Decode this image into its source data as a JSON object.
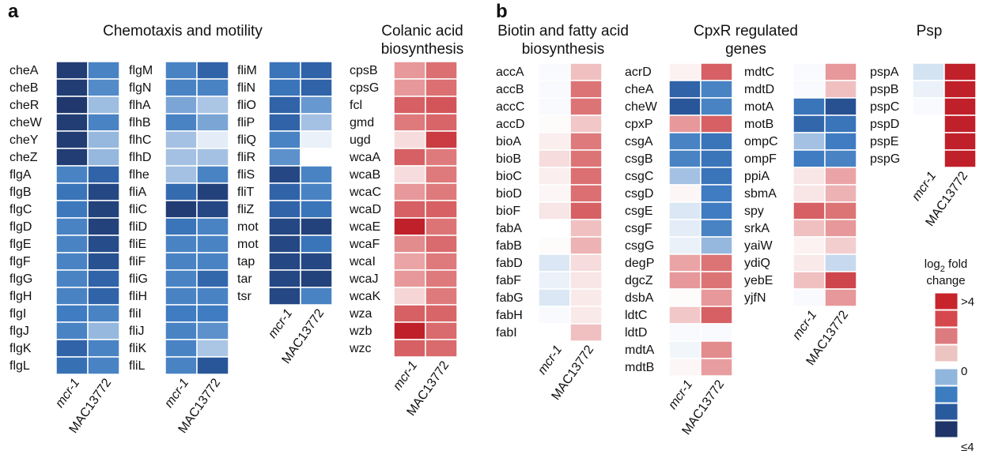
{
  "panel_labels": [
    "a",
    "b"
  ],
  "column_labels": [
    "mcr-1",
    "MAC13772"
  ],
  "legend": {
    "title_line1": "log",
    "title_sub": "2",
    "title_rest": " fold",
    "title_line2": "change",
    "ticks": [
      ">4",
      "0",
      "≤4"
    ],
    "colors": [
      "#c8242c",
      "#d4484e",
      "#dc7c7f",
      "#ecc4c2",
      "#ffffff",
      "#90b6dc",
      "#3c7dc0",
      "#2a5a9e",
      "#1f3468"
    ]
  },
  "color_scale": {
    "min": -4,
    "max": 4,
    "neg_colors": [
      "#ffffff",
      "#c6d9ee",
      "#8fb3dc",
      "#3f7cc1",
      "#2b5b9f",
      "#1e3366"
    ],
    "pos_colors": [
      "#ffffff",
      "#f6dcdc",
      "#eaa4a6",
      "#dc7476",
      "#d04b50",
      "#c0202a"
    ]
  },
  "chart_data": [
    {
      "type": "heatmap",
      "panel": "a",
      "title": "Chemotaxis and motility",
      "columns": [
        "mcr-1",
        "MAC13772"
      ],
      "groups": [
        {
          "rows": [
            "cheA",
            "cheB",
            "cheR",
            "cheW",
            "cheY",
            "cheZ",
            "flgA",
            "flgB",
            "flgC",
            "flgD",
            "flgE",
            "flgF",
            "flgG",
            "flgH",
            "flgI",
            "flgJ",
            "flgK",
            "flgL"
          ],
          "values": [
            [
              -3.8,
              -2.3
            ],
            [
              -3.8,
              -2.2
            ],
            [
              -3.9,
              -1.4
            ],
            [
              -3.8,
              -2.3
            ],
            [
              -3.8,
              -1.5
            ],
            [
              -3.8,
              -1.5
            ],
            [
              -2.3,
              -3.0
            ],
            [
              -2.6,
              -3.6
            ],
            [
              -2.5,
              -3.7
            ],
            [
              -2.3,
              -3.7
            ],
            [
              -2.3,
              -3.5
            ],
            [
              -2.3,
              -3.4
            ],
            [
              -2.3,
              -3.0
            ],
            [
              -2.3,
              -3.0
            ],
            [
              -2.4,
              -2.3
            ],
            [
              -2.3,
              -1.5
            ],
            [
              -3.0,
              -2.3
            ],
            [
              -2.7,
              -2.3
            ]
          ]
        },
        {
          "rows": [
            "flgM",
            "flgN",
            "flhA",
            "flhB",
            "flhC",
            "flhD",
            "flhe",
            "fliA",
            "fliC",
            "fliD",
            "fliE",
            "fliF",
            "fliG",
            "fliH",
            "fliI",
            "fliJ",
            "fliK",
            "fliL"
          ],
          "values": [
            [
              -2.3,
              -3.0
            ],
            [
              -2.3,
              -2.3
            ],
            [
              -1.8,
              -1.2
            ],
            [
              -2.3,
              -1.8
            ],
            [
              -1.3,
              -0.4
            ],
            [
              -1.3,
              -1.3
            ],
            [
              -1.3,
              -2.3
            ],
            [
              -2.8,
              -3.7
            ],
            [
              -3.8,
              -3.6
            ],
            [
              -2.6,
              -2.3
            ],
            [
              -2.3,
              -2.3
            ],
            [
              -2.3,
              -2.3
            ],
            [
              -2.3,
              -2.9
            ],
            [
              -2.3,
              -2.3
            ],
            [
              -2.4,
              -2.4
            ],
            [
              -2.3,
              -2.1
            ],
            [
              -2.3,
              -1.2
            ],
            [
              -2.3,
              -3.3
            ]
          ]
        },
        {
          "rows": [
            "fliM",
            "fliN",
            "fliO",
            "fliP",
            "fliQ",
            "fliR",
            "fliS",
            "fliT",
            "fliZ",
            "mot",
            "mot",
            "tap",
            "tar",
            "tsr"
          ],
          "values": [
            [
              -2.6,
              -3.0
            ],
            [
              -2.6,
              -3.0
            ],
            [
              -3.0,
              -2.0
            ],
            [
              -3.0,
              -1.3
            ],
            [
              -2.3,
              -0.3
            ],
            [
              -2.1,
              0.0
            ],
            [
              -3.6,
              -2.3
            ],
            [
              -3.0,
              -2.3
            ],
            [
              -3.0,
              -2.6
            ],
            [
              -3.6,
              -3.7
            ],
            [
              -3.6,
              -2.6
            ],
            [
              -3.6,
              -3.6
            ],
            [
              -3.6,
              -3.7
            ],
            [
              -3.6,
              -2.3
            ]
          ]
        }
      ]
    },
    {
      "type": "heatmap",
      "panel": "a",
      "title": "Colanic acid biosynthesis",
      "title_lines": [
        "Colanic acid",
        "biosynthesis"
      ],
      "columns": [
        "mcr-1",
        "MAC13772"
      ],
      "rows": [
        "cpsB",
        "cpsG",
        "fcl",
        "gmd",
        "ugd",
        "wcaA",
        "wcaB",
        "wcaC",
        "wcaD",
        "wcaE",
        "wcaF",
        "wcaI",
        "wcaJ",
        "wcaK",
        "wza",
        "wzb",
        "wzc"
      ],
      "values": [
        [
          1.8,
          2.5
        ],
        [
          1.8,
          2.5
        ],
        [
          2.8,
          3.0
        ],
        [
          2.3,
          2.7
        ],
        [
          0.8,
          3.5
        ],
        [
          2.8,
          2.3
        ],
        [
          0.8,
          2.3
        ],
        [
          1.8,
          2.3
        ],
        [
          2.8,
          2.8
        ],
        [
          4.5,
          2.4
        ],
        [
          2.0,
          2.6
        ],
        [
          1.6,
          2.3
        ],
        [
          1.8,
          2.3
        ],
        [
          0.9,
          2.3
        ],
        [
          2.8,
          2.7
        ],
        [
          4.3,
          2.6
        ],
        [
          2.8,
          2.6
        ]
      ]
    },
    {
      "type": "heatmap",
      "panel": "b",
      "title": "Biotin and fatty acid biosynthesis",
      "title_lines": [
        "Biotin and fatty acid",
        "biosynthesis"
      ],
      "columns": [
        "mcr-1",
        "MAC13772"
      ],
      "rows": [
        "accA",
        "accB",
        "accC",
        "accD",
        "bioA",
        "bioB",
        "bioC",
        "bioD",
        "bioF",
        "fabA",
        "fabB",
        "fabD",
        "fabF",
        "fabG",
        "fabH",
        "fabI"
      ],
      "values": [
        [
          -0.1,
          1.2
        ],
        [
          -0.1,
          2.4
        ],
        [
          -0.1,
          2.4
        ],
        [
          0.1,
          1.1
        ],
        [
          0.4,
          2.3
        ],
        [
          0.8,
          2.4
        ],
        [
          0.4,
          2.5
        ],
        [
          0.2,
          2.5
        ],
        [
          0.6,
          2.8
        ],
        [
          0.0,
          1.2
        ],
        [
          0.1,
          1.4
        ],
        [
          -0.5,
          0.8
        ],
        [
          -0.3,
          0.6
        ],
        [
          -0.5,
          0.5
        ],
        [
          -0.1,
          0.5
        ],
        [
          0.0,
          1.2
        ]
      ]
    },
    {
      "type": "heatmap",
      "panel": "b",
      "title": "CpxR regulated genes",
      "title_lines": [
        "CpxR regulated",
        "genes"
      ],
      "columns": [
        "mcr-1",
        "MAC13772"
      ],
      "groups": [
        {
          "rows": [
            "acrD",
            "cheA",
            "cheW",
            "cpxP",
            "csgA",
            "csgB",
            "csgC",
            "csgD",
            "csgE",
            "csgF",
            "csgG",
            "degP",
            "dgcZ",
            "dsbA",
            "ldtC",
            "ldtD",
            "mdtA",
            "mdtB"
          ],
          "values": [
            [
              0.3,
              2.8
            ],
            [
              -3.0,
              -2.3
            ],
            [
              -3.3,
              -2.3
            ],
            [
              1.8,
              2.8
            ],
            [
              -2.3,
              -2.6
            ],
            [
              -2.3,
              -2.6
            ],
            [
              -1.3,
              -2.6
            ],
            [
              0.2,
              -2.4
            ],
            [
              -0.5,
              -2.4
            ],
            [
              -0.4,
              -2.3
            ],
            [
              -0.3,
              -1.5
            ],
            [
              1.6,
              2.4
            ],
            [
              1.8,
              2.4
            ],
            [
              0.1,
              1.8
            ],
            [
              1.1,
              2.8
            ],
            [
              -0.1,
              -0.1
            ],
            [
              -0.2,
              2.0
            ],
            [
              0.2,
              1.7
            ]
          ]
        },
        {
          "rows": [
            "mdtC",
            "mdtD",
            "motA",
            "motB",
            "ompC",
            "ompF",
            "ppiA",
            "sbmA",
            "spy",
            "srkA",
            "yaiW",
            "ydiQ",
            "yebE",
            "yjfN"
          ],
          "values": [
            [
              -0.1,
              1.8
            ],
            [
              -0.1,
              1.2
            ],
            [
              -2.6,
              -3.4
            ],
            [
              -2.9,
              -2.6
            ],
            [
              -1.3,
              -2.4
            ],
            [
              -2.4,
              -2.3
            ],
            [
              0.6,
              1.6
            ],
            [
              0.6,
              1.4
            ],
            [
              2.8,
              2.4
            ],
            [
              1.2,
              1.8
            ],
            [
              0.3,
              1.0
            ],
            [
              0.5,
              -0.8
            ],
            [
              1.2,
              3.3
            ],
            [
              -0.1,
              1.8
            ]
          ]
        }
      ]
    },
    {
      "type": "heatmap",
      "panel": "b",
      "title": "Psp",
      "columns": [
        "mcr-1",
        "MAC13772"
      ],
      "rows": [
        "pspA",
        "pspB",
        "pspC",
        "pspD",
        "pspE",
        "pspG"
      ],
      "values": [
        [
          -0.6,
          4.6
        ],
        [
          -0.3,
          4.6
        ],
        [
          -0.1,
          4.6
        ],
        [
          0.0,
          4.6
        ],
        [
          0.0,
          4.6
        ],
        [
          0.0,
          4.6
        ]
      ]
    }
  ]
}
